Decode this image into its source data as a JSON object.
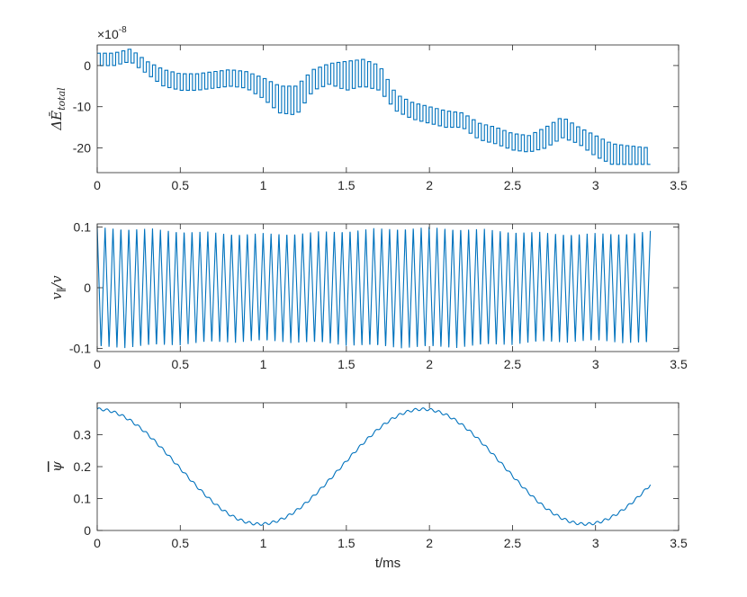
{
  "figure": {
    "xlabel": "t/ms",
    "exponent_label": "×10",
    "exponent_power": "-8"
  },
  "chart_data": [
    {
      "type": "line",
      "style": "step",
      "ylabel": "ΔĒ",
      "ylabel_subscript": "total",
      "xlim": [
        0,
        3.5
      ],
      "ylim": [
        -26,
        5
      ],
      "y_scale_factor": 1e-08,
      "xticks": [
        "0",
        "0.5",
        "1",
        "1.5",
        "2",
        "2.5",
        "3",
        "3.5"
      ],
      "yticks": [
        0,
        -10,
        -20
      ],
      "ytick_labels": [
        "0",
        "-10",
        "-20"
      ],
      "grid": false,
      "color": "#0072BD",
      "t_end": 3.33,
      "envelope_t": [
        0.0,
        0.1,
        0.2,
        0.3,
        0.4,
        0.5,
        0.6,
        0.7,
        0.8,
        0.9,
        1.0,
        1.1,
        1.2,
        1.3,
        1.4,
        1.5,
        1.6,
        1.7,
        1.8,
        1.9,
        2.0,
        2.1,
        2.2,
        2.3,
        2.4,
        2.5,
        2.6,
        2.7,
        2.8,
        2.9,
        3.0,
        3.1,
        3.2,
        3.33
      ],
      "envelope_upper": [
        3.0,
        3.0,
        4.0,
        1.0,
        -1.0,
        -2.0,
        -2.0,
        -1.5,
        -1.0,
        -1.5,
        -3.0,
        -5.0,
        -5.0,
        -1.0,
        0.5,
        1.0,
        1.5,
        0.0,
        -7.0,
        -9.0,
        -10.0,
        -11.0,
        -11.5,
        -14.0,
        -15.0,
        -16.5,
        -17.0,
        -15.0,
        -12.5,
        -15.0,
        -17.0,
        -19.0,
        -19.5,
        -20.0
      ],
      "envelope_lower": [
        0.0,
        0.0,
        1.0,
        -2.0,
        -5.0,
        -6.0,
        -6.0,
        -5.5,
        -5.0,
        -5.5,
        -8.0,
        -11.5,
        -12.0,
        -6.0,
        -4.5,
        -6.0,
        -5.0,
        -6.0,
        -11.0,
        -13.0,
        -14.0,
        -15.0,
        -15.0,
        -18.0,
        -19.0,
        -20.5,
        -21.0,
        -20.0,
        -17.5,
        -19.0,
        -22.0,
        -24.0,
        -24.0,
        -24.0
      ]
    },
    {
      "type": "line",
      "ylabel": "v",
      "ylabel_subscript": "∥",
      "ylabel_suffix": "/v",
      "xlim": [
        0,
        3.5
      ],
      "ylim": [
        -0.105,
        0.105
      ],
      "xticks": [
        "0",
        "0.5",
        "1",
        "1.5",
        "2",
        "2.5",
        "3",
        "3.5"
      ],
      "yticks": [
        0.1,
        0,
        -0.1
      ],
      "ytick_labels": [
        "0.1",
        "0",
        "-0.1"
      ],
      "grid": false,
      "color": "#0072BD",
      "t_end": 3.33,
      "amplitude_max": 0.1,
      "amplitude_min": 0.09,
      "oscillation_count": 70
    },
    {
      "type": "line",
      "ylabel": "ψ",
      "ylabel_overline": true,
      "xlim": [
        0,
        3.5
      ],
      "ylim": [
        0,
        0.4
      ],
      "xticks": [
        "0",
        "0.5",
        "1",
        "1.5",
        "2",
        "2.5",
        "3",
        "3.5"
      ],
      "yticks": [
        0.3,
        0.2,
        0.1,
        0
      ],
      "ytick_labels": [
        "0.3",
        "0.2",
        "0.1",
        "0"
      ],
      "grid": false,
      "color": "#0072BD",
      "t_end": 3.33,
      "mean": 0.2,
      "amplitude": 0.18,
      "period_ms": 1.96,
      "ripple_amplitude": 0.004,
      "ripple_count": 70
    }
  ]
}
